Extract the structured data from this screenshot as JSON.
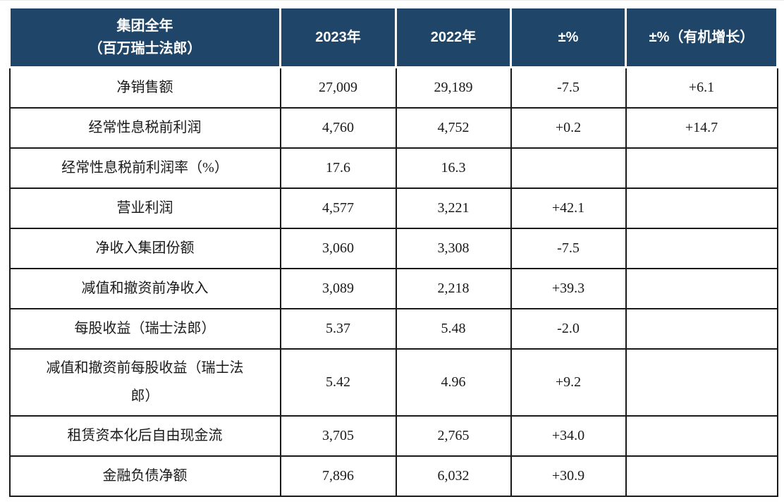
{
  "table": {
    "header": {
      "group_line1": "集团全年",
      "group_line2": "（百万瑞士法郎）",
      "col_2023": "2023年",
      "col_2022": "2022年",
      "col_change": "±%",
      "col_organic": "±%（有机增长）"
    },
    "rows": [
      {
        "label": "净销售额",
        "y2023": "27,009",
        "y2022": "29,189",
        "change": "-7.5",
        "organic": "+6.1"
      },
      {
        "label": "经常性息税前利润",
        "y2023": "4,760",
        "y2022": "4,752",
        "change": "+0.2",
        "organic": "+14.7"
      },
      {
        "label": "经常性息税前利润率（%）",
        "y2023": "17.6",
        "y2022": "16.3",
        "change": "",
        "organic": ""
      },
      {
        "label": "营业利润",
        "y2023": "4,577",
        "y2022": "3,221",
        "change": "+42.1",
        "organic": ""
      },
      {
        "label": "净收入集团份额",
        "y2023": "3,060",
        "y2022": "3,308",
        "change": "-7.5",
        "organic": ""
      },
      {
        "label": "减值和撤资前净收入",
        "y2023": "3,089",
        "y2022": "2,218",
        "change": "+39.3",
        "organic": ""
      },
      {
        "label": "每股收益（瑞士法郎）",
        "y2023": "5.37",
        "y2022": "5.48",
        "change": "-2.0",
        "organic": ""
      },
      {
        "label": "减值和撤资前每股收益（瑞士法郎）",
        "y2023": "5.42",
        "y2022": "4.96",
        "change": "+9.2",
        "organic": ""
      },
      {
        "label": "租赁资本化后自由现金流",
        "y2023": "3,705",
        "y2022": "2,765",
        "change": "+34.0",
        "organic": ""
      },
      {
        "label": "金融负债净额",
        "y2023": "7,896",
        "y2022": "6,032",
        "change": "+30.9",
        "organic": ""
      }
    ],
    "colors": {
      "header_bg": "#1f4568",
      "header_text": "#ffffff",
      "grid_border": "#1a1a1a",
      "body_text": "#1a1a1a"
    }
  },
  "chart_data": {
    "type": "table",
    "title": "集团全年（百万瑞士法郎）",
    "columns": [
      "集团全年（百万瑞士法郎）",
      "2023年",
      "2022年",
      "±%",
      "±%（有机增长）"
    ],
    "rows": [
      [
        "净销售额",
        "27,009",
        "29,189",
        "-7.5",
        "+6.1"
      ],
      [
        "经常性息税前利润",
        "4,760",
        "4,752",
        "+0.2",
        "+14.7"
      ],
      [
        "经常性息税前利润率（%）",
        "17.6",
        "16.3",
        "",
        ""
      ],
      [
        "营业利润",
        "4,577",
        "3,221",
        "+42.1",
        ""
      ],
      [
        "净收入集团份额",
        "3,060",
        "3,308",
        "-7.5",
        ""
      ],
      [
        "减值和撤资前净收入",
        "3,089",
        "2,218",
        "+39.3",
        ""
      ],
      [
        "每股收益（瑞士法郎）",
        "5.37",
        "5.48",
        "-2.0",
        ""
      ],
      [
        "减值和撤资前每股收益（瑞士法郎）",
        "5.42",
        "4.96",
        "+9.2",
        ""
      ],
      [
        "租赁资本化后自由现金流",
        "3,705",
        "2,765",
        "+34.0",
        ""
      ],
      [
        "金融负债净额",
        "7,896",
        "6,032",
        "+30.9",
        ""
      ]
    ]
  }
}
